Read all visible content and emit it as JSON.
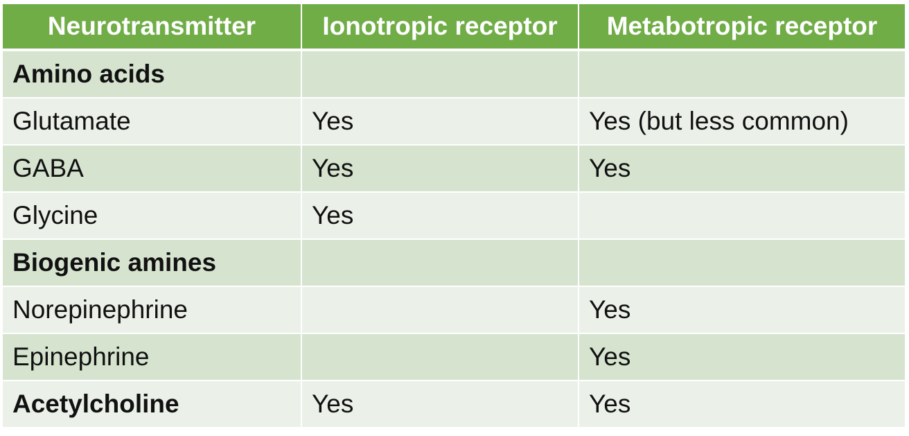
{
  "table": {
    "headers": [
      "Neurotransmitter",
      "Ionotropic receptor",
      "Metabotropic receptor"
    ],
    "rows": [
      {
        "name": "Amino acids",
        "ionotropic": "",
        "metabotropic": "",
        "bold": true
      },
      {
        "name": "Glutamate",
        "ionotropic": "Yes",
        "metabotropic": "Yes (but less common)",
        "bold": false
      },
      {
        "name": "GABA",
        "ionotropic": "Yes",
        "metabotropic": "Yes",
        "bold": false
      },
      {
        "name": "Glycine",
        "ionotropic": "Yes",
        "metabotropic": "",
        "bold": false
      },
      {
        "name": "Biogenic amines",
        "ionotropic": "",
        "metabotropic": "",
        "bold": true
      },
      {
        "name": "Norepinephrine",
        "ionotropic": "",
        "metabotropic": "Yes",
        "bold": false
      },
      {
        "name": "Epinephrine",
        "ionotropic": "",
        "metabotropic": "Yes",
        "bold": false
      },
      {
        "name": "Acetylcholine",
        "ionotropic": "Yes",
        "metabotropic": "Yes",
        "bold": true
      }
    ]
  },
  "colors": {
    "header_bg": "#70ad47",
    "row_dark": "#d5e3cf",
    "row_light": "#ebf1e9"
  }
}
